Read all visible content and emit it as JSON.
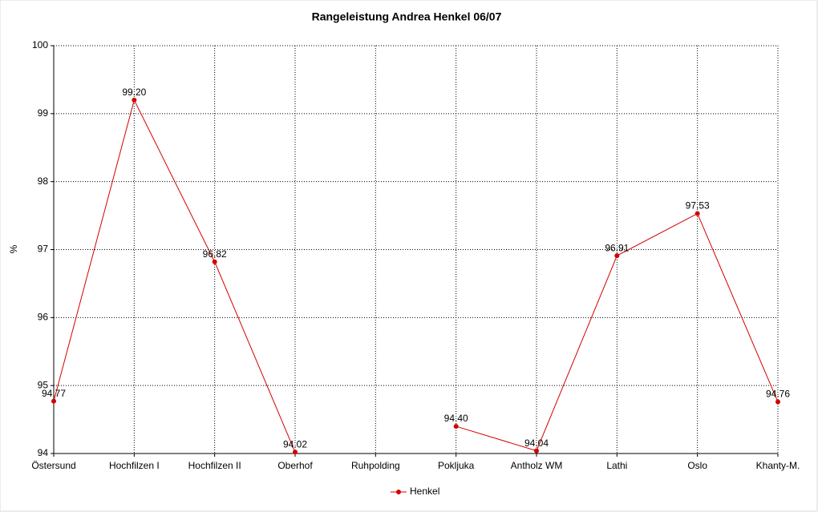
{
  "chart_data": {
    "type": "line",
    "title": "Rangeleistung Andrea Henkel 06/07",
    "y_label": "%",
    "categories": [
      "Östersund",
      "Hochfilzen I",
      "Hochfilzen II",
      "Oberhof",
      "Ruhpolding",
      "Pokljuka",
      "Antholz WM",
      "Lathi",
      "Oslo",
      "Khanty-M."
    ],
    "series": [
      {
        "name": "Henkel",
        "color": "#d40000",
        "values": [
          94.77,
          99.2,
          96.82,
          94.02,
          null,
          94.4,
          94.04,
          96.91,
          97.53,
          94.76
        ],
        "value_labels": [
          "94.77",
          "99.20",
          "96.82",
          "94.02",
          null,
          "94.40",
          "94.04",
          "96.91",
          "97.53",
          "94.76"
        ]
      }
    ],
    "ylim": [
      94,
      100
    ],
    "yticks": [
      94,
      95,
      96,
      97,
      98,
      99,
      100
    ],
    "grid": true,
    "legend": "bottom"
  }
}
